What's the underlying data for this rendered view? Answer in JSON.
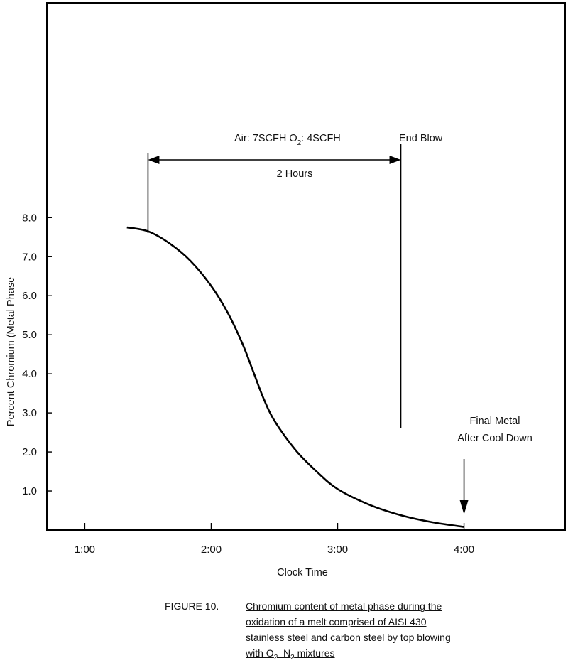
{
  "chart_data": {
    "type": "line",
    "xlabel": "Clock Time",
    "ylabel": "Percent Chromium (Metal Phase",
    "x_ticks": [
      "1:00",
      "2:00",
      "3:00",
      "4:00"
    ],
    "y_ticks": [
      "1.0",
      "2.0",
      "3.0",
      "4.0",
      "5.0",
      "6.0",
      "7.0",
      "8.0"
    ],
    "xlim": [
      "0:42",
      "4:48"
    ],
    "ylim": [
      0,
      13.5
    ],
    "grid": false,
    "series": [
      {
        "x": [
          "1:20",
          "1:30",
          "1:40",
          "1:50",
          "2:00",
          "2:08",
          "2:15",
          "2:20",
          "2:25",
          "2:30",
          "2:40",
          "2:50",
          "3:00",
          "3:15",
          "3:30",
          "3:45",
          "4:00"
        ],
        "y": [
          7.75,
          7.65,
          7.35,
          6.9,
          6.25,
          5.55,
          4.75,
          4.05,
          3.35,
          2.8,
          2.05,
          1.5,
          1.05,
          0.65,
          0.38,
          0.2,
          0.08
        ]
      }
    ],
    "annotations": {
      "blow_label_air": "Air: 7SCFH O",
      "blow_label_o2_sub": "2",
      "blow_label_o2_rest": ": 4SCFH",
      "end_blow": "End Blow",
      "duration": "2 Hours",
      "final_metal_line1": "Final Metal",
      "final_metal_line2": "After Cool Down",
      "blow_start": "1:30",
      "blow_end": "3:30",
      "final_time": "4:00"
    }
  },
  "caption": {
    "prefix": "FIGURE 10. –",
    "line1": "Chromium content of metal phase during the",
    "line2": "oxidation of a melt comprised of AISI 430",
    "line3": "stainless steel and carbon steel by top blowing",
    "line4_a": "with O",
    "line4_sub1": "2",
    "line4_b": "–N",
    "line4_sub2": "2",
    "line4_c": " mixtures"
  }
}
